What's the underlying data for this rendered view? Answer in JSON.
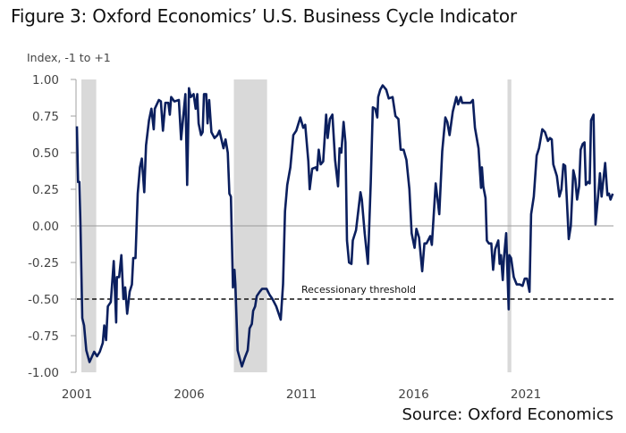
{
  "chart_data": {
    "type": "line",
    "title": "Figure 3: Oxford Economics’ U.S. Business Cycle Indicator",
    "ylabel": "Index, -1 to +1",
    "xlabel": "",
    "source": "Source: Oxford Economics",
    "xlim": [
      2001,
      2024.9
    ],
    "ylim": [
      -1,
      1
    ],
    "x_ticks": [
      2001,
      2006,
      2011,
      2016,
      2021
    ],
    "x_tick_labels": [
      "2001",
      "2006",
      "2011",
      "2016",
      "2021"
    ],
    "y_ticks": [
      1,
      0.75,
      0.5,
      0.25,
      0,
      -0.25,
      -0.5,
      -0.75,
      -1
    ],
    "y_tick_labels": [
      "1.00",
      "0.75",
      "0.50",
      "0.25",
      "0.00",
      "-0.25",
      "-0.50",
      "-0.75",
      "-1.00"
    ],
    "grid": false,
    "colors": {
      "line": "#0b1f5e",
      "recession": "#d9d9d9",
      "zero_line": "#9a9a9a",
      "threshold": "#111111"
    },
    "threshold": {
      "value": -0.5,
      "label": "Recessionary threshold",
      "style": "dashed"
    },
    "recessions": [
      [
        2001.2,
        2001.86
      ],
      [
        2007.99,
        2009.47
      ],
      [
        2020.18,
        2020.35
      ]
    ],
    "series": [
      {
        "points": [
          [
            2001.0,
            0.68
          ],
          [
            2001.05,
            0.3
          ],
          [
            2001.11,
            0.3
          ],
          [
            2001.16,
            0.0
          ],
          [
            2001.24,
            -0.63
          ],
          [
            2001.32,
            -0.68
          ],
          [
            2001.42,
            -0.85
          ],
          [
            2001.56,
            -0.93
          ],
          [
            2001.77,
            -0.86
          ],
          [
            2001.9,
            -0.89
          ],
          [
            2002.02,
            -0.86
          ],
          [
            2002.15,
            -0.8
          ],
          [
            2002.22,
            -0.68
          ],
          [
            2002.3,
            -0.78
          ],
          [
            2002.38,
            -0.55
          ],
          [
            2002.51,
            -0.52
          ],
          [
            2002.64,
            -0.24
          ],
          [
            2002.75,
            -0.66
          ],
          [
            2002.78,
            -0.35
          ],
          [
            2002.88,
            -0.35
          ],
          [
            2002.98,
            -0.2
          ],
          [
            2003.07,
            -0.5
          ],
          [
            2003.15,
            -0.42
          ],
          [
            2003.24,
            -0.6
          ],
          [
            2003.35,
            -0.45
          ],
          [
            2003.45,
            -0.4
          ],
          [
            2003.51,
            -0.22
          ],
          [
            2003.61,
            -0.22
          ],
          [
            2003.71,
            0.22
          ],
          [
            2003.81,
            0.4
          ],
          [
            2003.89,
            0.46
          ],
          [
            2004.0,
            0.23
          ],
          [
            2004.08,
            0.55
          ],
          [
            2004.21,
            0.72
          ],
          [
            2004.32,
            0.8
          ],
          [
            2004.42,
            0.66
          ],
          [
            2004.47,
            0.8
          ],
          [
            2004.65,
            0.86
          ],
          [
            2004.74,
            0.85
          ],
          [
            2004.83,
            0.65
          ],
          [
            2004.94,
            0.84
          ],
          [
            2005.07,
            0.84
          ],
          [
            2005.14,
            0.76
          ],
          [
            2005.2,
            0.88
          ],
          [
            2005.34,
            0.85
          ],
          [
            2005.54,
            0.86
          ],
          [
            2005.64,
            0.59
          ],
          [
            2005.71,
            0.7
          ],
          [
            2005.83,
            0.9
          ],
          [
            2005.91,
            0.28
          ],
          [
            2005.99,
            0.94
          ],
          [
            2006.07,
            0.88
          ],
          [
            2006.2,
            0.9
          ],
          [
            2006.29,
            0.8
          ],
          [
            2006.36,
            0.9
          ],
          [
            2006.42,
            0.7
          ],
          [
            2006.53,
            0.62
          ],
          [
            2006.6,
            0.64
          ],
          [
            2006.66,
            0.9
          ],
          [
            2006.76,
            0.9
          ],
          [
            2006.82,
            0.7
          ],
          [
            2006.89,
            0.86
          ],
          [
            2006.99,
            0.64
          ],
          [
            2007.13,
            0.6
          ],
          [
            2007.26,
            0.62
          ],
          [
            2007.35,
            0.65
          ],
          [
            2007.53,
            0.53
          ],
          [
            2007.62,
            0.59
          ],
          [
            2007.72,
            0.5
          ],
          [
            2007.79,
            0.22
          ],
          [
            2007.86,
            0.2
          ],
          [
            2007.95,
            -0.42
          ],
          [
            2008.02,
            -0.3
          ],
          [
            2008.06,
            -0.4
          ],
          [
            2008.16,
            -0.85
          ],
          [
            2008.35,
            -0.96
          ],
          [
            2008.48,
            -0.9
          ],
          [
            2008.61,
            -0.85
          ],
          [
            2008.69,
            -0.7
          ],
          [
            2008.79,
            -0.67
          ],
          [
            2008.85,
            -0.58
          ],
          [
            2008.94,
            -0.55
          ],
          [
            2009.01,
            -0.48
          ],
          [
            2009.14,
            -0.45
          ],
          [
            2009.25,
            -0.43
          ],
          [
            2009.45,
            -0.43
          ],
          [
            2009.58,
            -0.47
          ],
          [
            2009.71,
            -0.5
          ],
          [
            2009.88,
            -0.55
          ],
          [
            2010.08,
            -0.64
          ],
          [
            2010.18,
            -0.4
          ],
          [
            2010.27,
            0.1
          ],
          [
            2010.37,
            0.28
          ],
          [
            2010.51,
            0.4
          ],
          [
            2010.64,
            0.62
          ],
          [
            2010.77,
            0.65
          ],
          [
            2010.95,
            0.74
          ],
          [
            2011.08,
            0.67
          ],
          [
            2011.17,
            0.69
          ],
          [
            2011.31,
            0.44
          ],
          [
            2011.37,
            0.25
          ],
          [
            2011.48,
            0.39
          ],
          [
            2011.64,
            0.4
          ],
          [
            2011.7,
            0.38
          ],
          [
            2011.77,
            0.52
          ],
          [
            2011.86,
            0.42
          ],
          [
            2011.97,
            0.44
          ],
          [
            2012.1,
            0.76
          ],
          [
            2012.17,
            0.6
          ],
          [
            2012.27,
            0.73
          ],
          [
            2012.38,
            0.76
          ],
          [
            2012.5,
            0.45
          ],
          [
            2012.63,
            0.27
          ],
          [
            2012.7,
            0.53
          ],
          [
            2012.78,
            0.5
          ],
          [
            2012.88,
            0.71
          ],
          [
            2012.96,
            0.57
          ],
          [
            2013.03,
            -0.1
          ],
          [
            2013.12,
            -0.25
          ],
          [
            2013.23,
            -0.26
          ],
          [
            2013.29,
            -0.1
          ],
          [
            2013.43,
            -0.03
          ],
          [
            2013.63,
            0.23
          ],
          [
            2013.69,
            0.18
          ],
          [
            2013.82,
            -0.05
          ],
          [
            2013.96,
            -0.26
          ],
          [
            2014.09,
            0.3
          ],
          [
            2014.18,
            0.81
          ],
          [
            2014.29,
            0.8
          ],
          [
            2014.38,
            0.74
          ],
          [
            2014.42,
            0.88
          ],
          [
            2014.51,
            0.93
          ],
          [
            2014.62,
            0.96
          ],
          [
            2014.78,
            0.93
          ],
          [
            2014.89,
            0.87
          ],
          [
            2015.06,
            0.88
          ],
          [
            2015.19,
            0.75
          ],
          [
            2015.32,
            0.73
          ],
          [
            2015.42,
            0.52
          ],
          [
            2015.55,
            0.52
          ],
          [
            2015.68,
            0.45
          ],
          [
            2015.81,
            0.25
          ],
          [
            2015.91,
            -0.05
          ],
          [
            2016.04,
            -0.15
          ],
          [
            2016.12,
            -0.02
          ],
          [
            2016.24,
            -0.08
          ],
          [
            2016.38,
            -0.31
          ],
          [
            2016.48,
            -0.12
          ],
          [
            2016.57,
            -0.12
          ],
          [
            2016.74,
            -0.07
          ],
          [
            2016.81,
            -0.13
          ],
          [
            2016.98,
            0.29
          ],
          [
            2017.14,
            0.08
          ],
          [
            2017.27,
            0.51
          ],
          [
            2017.41,
            0.74
          ],
          [
            2017.5,
            0.71
          ],
          [
            2017.6,
            0.62
          ],
          [
            2017.74,
            0.78
          ],
          [
            2017.9,
            0.88
          ],
          [
            2017.98,
            0.83
          ],
          [
            2018.1,
            0.88
          ],
          [
            2018.16,
            0.84
          ],
          [
            2018.37,
            0.84
          ],
          [
            2018.53,
            0.84
          ],
          [
            2018.64,
            0.86
          ],
          [
            2018.73,
            0.67
          ],
          [
            2018.89,
            0.53
          ],
          [
            2019.0,
            0.26
          ],
          [
            2019.04,
            0.4
          ],
          [
            2019.1,
            0.27
          ],
          [
            2019.2,
            0.19
          ],
          [
            2019.26,
            -0.1
          ],
          [
            2019.35,
            -0.12
          ],
          [
            2019.46,
            -0.12
          ],
          [
            2019.54,
            -0.3
          ],
          [
            2019.63,
            -0.16
          ],
          [
            2019.77,
            -0.1
          ],
          [
            2019.83,
            -0.26
          ],
          [
            2019.89,
            -0.2
          ],
          [
            2019.97,
            -0.37
          ],
          [
            2020.02,
            -0.22
          ],
          [
            2020.12,
            -0.05
          ],
          [
            2020.23,
            -0.57
          ],
          [
            2020.26,
            -0.2
          ],
          [
            2020.34,
            -0.22
          ],
          [
            2020.46,
            -0.35
          ],
          [
            2020.59,
            -0.4
          ],
          [
            2020.72,
            -0.4
          ],
          [
            2020.85,
            -0.41
          ],
          [
            2020.95,
            -0.36
          ],
          [
            2021.05,
            -0.36
          ],
          [
            2021.16,
            -0.45
          ],
          [
            2021.23,
            0.08
          ],
          [
            2021.35,
            0.2
          ],
          [
            2021.48,
            0.48
          ],
          [
            2021.58,
            0.53
          ],
          [
            2021.73,
            0.66
          ],
          [
            2021.85,
            0.64
          ],
          [
            2021.98,
            0.58
          ],
          [
            2022.07,
            0.6
          ],
          [
            2022.15,
            0.59
          ],
          [
            2022.22,
            0.42
          ],
          [
            2022.38,
            0.34
          ],
          [
            2022.49,
            0.2
          ],
          [
            2022.58,
            0.25
          ],
          [
            2022.67,
            0.42
          ],
          [
            2022.75,
            0.41
          ],
          [
            2022.91,
            -0.09
          ],
          [
            2023.0,
            0.0
          ],
          [
            2023.11,
            0.38
          ],
          [
            2023.2,
            0.32
          ],
          [
            2023.28,
            0.18
          ],
          [
            2023.37,
            0.27
          ],
          [
            2023.44,
            0.52
          ],
          [
            2023.53,
            0.56
          ],
          [
            2023.61,
            0.57
          ],
          [
            2023.67,
            0.28
          ],
          [
            2023.77,
            0.3
          ],
          [
            2023.84,
            0.29
          ],
          [
            2023.9,
            0.72
          ],
          [
            2024.01,
            0.76
          ],
          [
            2024.1,
            0.01
          ],
          [
            2024.23,
            0.23
          ],
          [
            2024.3,
            0.36
          ],
          [
            2024.37,
            0.2
          ],
          [
            2024.53,
            0.43
          ],
          [
            2024.63,
            0.21
          ],
          [
            2024.7,
            0.22
          ],
          [
            2024.77,
            0.18
          ],
          [
            2024.87,
            0.22
          ]
        ]
      }
    ]
  }
}
